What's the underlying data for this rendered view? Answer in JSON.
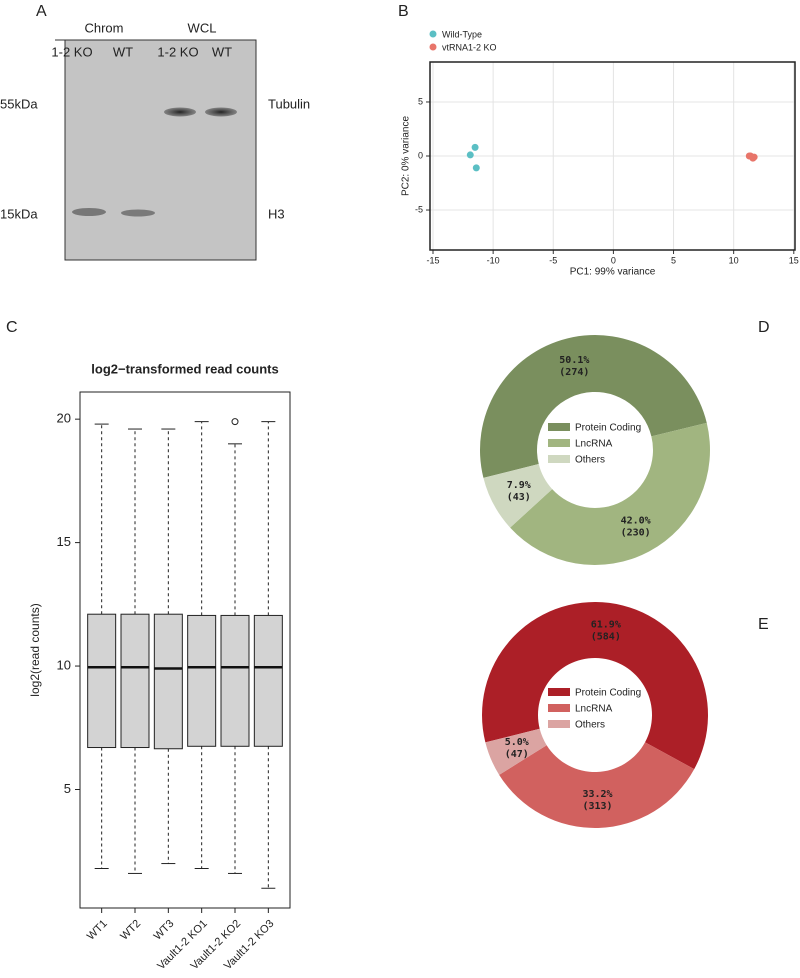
{
  "blot": {
    "panel": "A",
    "group_labels": [
      "Chrom",
      "WCL"
    ],
    "lane_labels": [
      "1-2 KO",
      "WT",
      "1-2 KO",
      "WT"
    ],
    "marker_labels": [
      "55kDa",
      "15kDa"
    ],
    "band_labels": [
      "Tubulin",
      "H3"
    ]
  },
  "chart_data": [
    {
      "type": "scatter",
      "panel": "B",
      "x_label": "PC1: 99% variance",
      "y_label": "PC2: 0% variance",
      "xlim": [
        -15.25,
        15.1
      ],
      "ylim": [
        -8.7,
        8.7
      ],
      "xticks": [
        -15,
        -10,
        -5,
        0,
        5,
        10,
        15
      ],
      "yticks": [
        -5,
        0,
        5
      ],
      "grid": true,
      "series": [
        {
          "name": "Wild-Type",
          "color": "#5bbfc4",
          "x": [
            -11.5,
            -11.9,
            -11.4
          ],
          "values": [
            0.8,
            0.1,
            -1.1
          ]
        },
        {
          "name": "vtRNA1-2 KO",
          "color": "#e8756a",
          "x": [
            11.4,
            11.6,
            11.3,
            11.7
          ],
          "values": [
            0.0,
            -0.2,
            0.0,
            -0.1
          ]
        }
      ]
    },
    {
      "type": "box",
      "panel": "C",
      "title": "log2−transformed read counts",
      "y_label": "log2(read counts)",
      "categories": [
        "WT1",
        "WT2",
        "WT3",
        "Vault1-2 KO1",
        "Vault1-2 KO2",
        "Vault1-2 KO3"
      ],
      "ylim": [
        0.2,
        21.1
      ],
      "yticks": [
        5,
        10,
        15,
        20
      ],
      "color": "#d3d3d3",
      "low": [
        1.8,
        1.6,
        2.0,
        1.8,
        1.6,
        1.0
      ],
      "q1": [
        6.7,
        6.7,
        6.65,
        6.75,
        6.75,
        6.75
      ],
      "median": [
        9.95,
        9.95,
        9.9,
        9.95,
        9.95,
        9.95
      ],
      "q3": [
        12.1,
        12.1,
        12.1,
        12.05,
        12.05,
        12.05
      ],
      "high": [
        19.8,
        19.6,
        19.6,
        19.9,
        19.0,
        19.9
      ],
      "outliers": [
        [],
        [],
        [],
        [],
        [
          19.9
        ],
        []
      ]
    },
    {
      "type": "donut",
      "panel": "D",
      "categories": [
        "Protein Coding",
        "LncRNA",
        "Others"
      ],
      "values": [
        50.1,
        42.0,
        7.9
      ],
      "value_labels": [
        "50.1%",
        "42.0%",
        "7.9%"
      ],
      "counts": [
        274,
        230,
        43
      ],
      "count_labels": [
        "(274)",
        "(230)",
        "(43)"
      ],
      "colors": [
        "#7a8f5e",
        "#a1b580",
        "#cfd8c0"
      ]
    },
    {
      "type": "donut",
      "panel": "E",
      "categories": [
        "Protein Coding",
        "LncRNA",
        "Others"
      ],
      "values": [
        61.9,
        33.2,
        5.0
      ],
      "value_labels": [
        "61.9%",
        "33.2%",
        "5.0%"
      ],
      "counts": [
        584,
        313,
        47
      ],
      "count_labels": [
        "(584)",
        "(313)",
        "(47)"
      ],
      "colors": [
        "#ac1f27",
        "#d1615f",
        "#dba4a2"
      ]
    }
  ]
}
